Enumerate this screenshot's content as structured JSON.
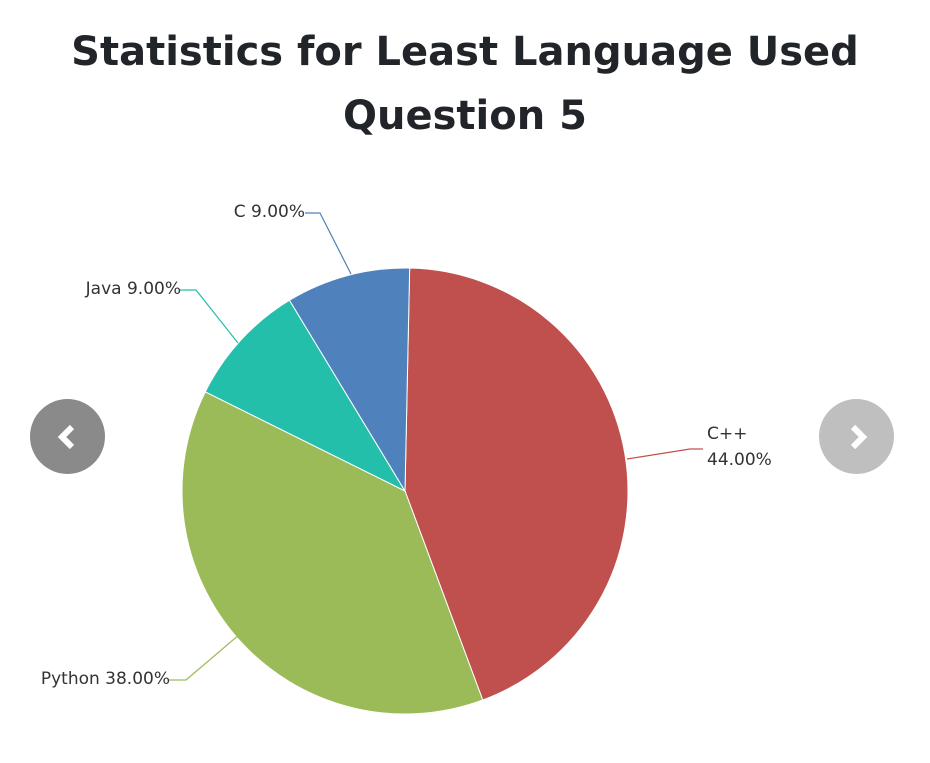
{
  "title_lines": [
    "Statistics for Least Language Used",
    "Question 5"
  ],
  "chart_data": {
    "type": "pie",
    "title": "Statistics for Least Language Used Question 5",
    "slices": [
      {
        "label": "C++",
        "value": 44.0,
        "display": "44.00%",
        "color": "#c0504d"
      },
      {
        "label": "Python",
        "value": 38.0,
        "display": "38.00%",
        "color": "#9bbb59"
      },
      {
        "label": "Java",
        "value": 9.0,
        "display": "9.00%",
        "color": "#23bfaa"
      },
      {
        "label": "C",
        "value": 9.0,
        "display": "9.00%",
        "color": "#4f81bc"
      }
    ],
    "start_angle_deg": -88.8,
    "direction": "clockwise"
  },
  "carousel": {
    "prev_icon": "chevron-left-icon",
    "next_icon": "chevron-right-icon"
  }
}
